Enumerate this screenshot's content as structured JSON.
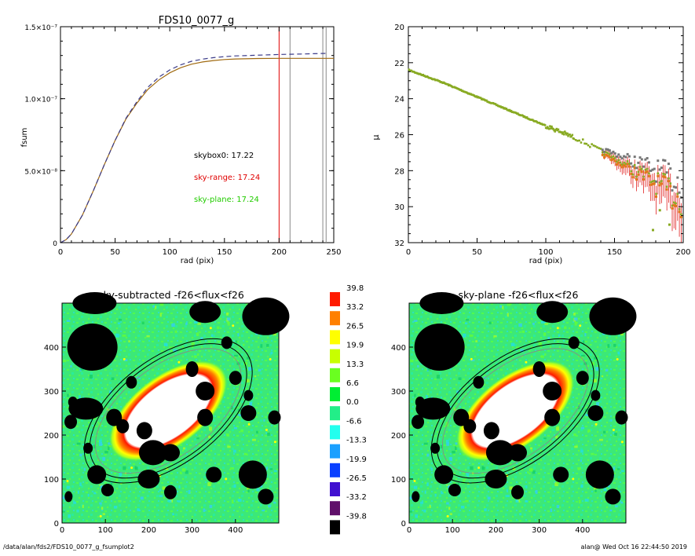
{
  "chart_data": [
    {
      "type": "line",
      "title": "FDS10_0077_g",
      "xlabel": "rad (pix)",
      "ylabel": "fsum",
      "xlim": [
        0,
        250
      ],
      "ylim": [
        0,
        1.5e-07
      ],
      "xticks": [
        "0",
        "50",
        "100",
        "150",
        "200",
        "250"
      ],
      "yticks": [
        {
          "value": 0,
          "label": "0"
        },
        {
          "value": 5e-08,
          "label": "5.0×10⁻⁸"
        },
        {
          "value": 1e-07,
          "label": "1.0×10⁻⁷"
        },
        {
          "value": 1.5e-07,
          "label": "1.5×10⁻⁷"
        }
      ],
      "vlines": [
        {
          "x": 200,
          "color": "#e00000"
        },
        {
          "x": 210,
          "color": "#888888"
        },
        {
          "x": 240,
          "color": "#888888"
        },
        {
          "x": 243,
          "color": "#888888"
        }
      ],
      "annotations": [
        {
          "text": "skybox0: 17.22",
          "color": "#000000"
        },
        {
          "text": "sky-range: 17.24",
          "color": "#e00000"
        },
        {
          "text": "sky-plane: 17.24",
          "color": "#22cc00"
        }
      ],
      "series": [
        {
          "style": "solid",
          "color": "#a06a10",
          "x": [
            0,
            5,
            10,
            20,
            30,
            40,
            50,
            60,
            70,
            80,
            90,
            100,
            110,
            120,
            130,
            140,
            150,
            160,
            180,
            200,
            220,
            250
          ],
          "y": [
            0,
            2e-09,
            6e-09,
            1.9e-08,
            3.6e-08,
            5.4e-08,
            7.1e-08,
            8.6e-08,
            9.7e-08,
            1.065e-07,
            1.13e-07,
            1.18e-07,
            1.215e-07,
            1.24e-07,
            1.255e-07,
            1.265e-07,
            1.272e-07,
            1.276e-07,
            1.279e-07,
            1.28e-07,
            1.28e-07,
            1.28e-07
          ]
        },
        {
          "style": "dashed",
          "color": "#3a3a88",
          "x": [
            0,
            5,
            10,
            20,
            30,
            40,
            50,
            60,
            70,
            80,
            90,
            100,
            110,
            120,
            130,
            140,
            150,
            160,
            180,
            200,
            220,
            245
          ],
          "y": [
            0,
            2e-09,
            6e-09,
            1.9e-08,
            3.6e-08,
            5.4e-08,
            7.1e-08,
            8.65e-08,
            9.8e-08,
            1.08e-07,
            1.15e-07,
            1.2e-07,
            1.235e-07,
            1.26e-07,
            1.275e-07,
            1.285e-07,
            1.292e-07,
            1.297e-07,
            1.302e-07,
            1.307e-07,
            1.31e-07,
            1.315e-07
          ]
        }
      ]
    },
    {
      "type": "scatter",
      "xlabel": "rad (pix)",
      "ylabel": "μ",
      "xlim": [
        0,
        200
      ],
      "ylim": [
        32,
        20
      ],
      "xticks": [
        "0",
        "50",
        "100",
        "150",
        "200"
      ],
      "yticks": [
        "20",
        "22",
        "24",
        "26",
        "28",
        "30",
        "32"
      ],
      "profile": {
        "x": [
          0,
          25,
          50,
          75,
          100,
          125,
          150,
          175,
          200
        ],
        "y": [
          22.4,
          23.1,
          23.9,
          24.7,
          25.5,
          26.3,
          27.3,
          28.4,
          29.6
        ]
      },
      "colors": {
        "points": "#88aa22",
        "orange": "#e07818",
        "red": "#e02020",
        "gray": "#777777"
      }
    },
    {
      "type": "heatmap",
      "title": "sky-subtracted -f26<flux<f26",
      "xlim": [
        0,
        500
      ],
      "ylim": [
        0,
        500
      ],
      "xticks": [
        "0",
        "100",
        "200",
        "300",
        "400"
      ],
      "yticks": [
        "0",
        "100",
        "200",
        "300",
        "400"
      ]
    },
    {
      "type": "heatmap",
      "title": "sky-plane -f26<flux<f26",
      "xlim": [
        0,
        500
      ],
      "ylim": [
        0,
        500
      ],
      "xticks": [
        "0",
        "100",
        "200",
        "300",
        "400"
      ],
      "yticks": [
        "0",
        "100",
        "200",
        "300",
        "400"
      ]
    }
  ],
  "colorbar": {
    "levels": [
      {
        "label": "39.8",
        "color": "#ff1a00"
      },
      {
        "label": "33.2",
        "color": "#ff8000"
      },
      {
        "label": "26.5",
        "color": "#ffff00"
      },
      {
        "label": "19.9",
        "color": "#c8ff00"
      },
      {
        "label": "13.3",
        "color": "#6aff20"
      },
      {
        "label": "6.6",
        "color": "#00ee33"
      },
      {
        "label": "0.0",
        "color": "#22ee88"
      },
      {
        "label": "-6.6",
        "color": "#22ffee"
      },
      {
        "label": "-13.3",
        "color": "#1aa0ff"
      },
      {
        "label": "-19.9",
        "color": "#0a40ff"
      },
      {
        "label": "-26.5",
        "color": "#4010d0"
      },
      {
        "label": "-33.2",
        "color": "#60106a"
      },
      {
        "label": "-39.8",
        "color": "#000000"
      }
    ]
  },
  "footer": {
    "left": "/data/alan/fds2/FDS10_0077_g_fsumplot2",
    "right": "alan@  Wed Oct 16 22:44:50 2019"
  }
}
